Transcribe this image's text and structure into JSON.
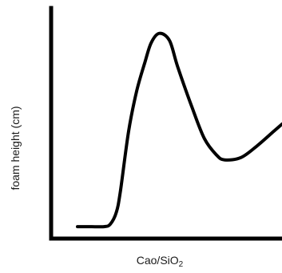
{
  "chart_data": {
    "type": "line",
    "title": "",
    "xlabel": "Cao/SiO",
    "xlabel_subscript": "2",
    "ylabel": "foam height (cm)",
    "x_ticks": [],
    "y_ticks": [],
    "grid": false,
    "legend": "none",
    "line_color": "#000000",
    "series": [
      {
        "name": "",
        "x": [
          0.0,
          0.07,
          0.13,
          0.16,
          0.19,
          0.21,
          0.25,
          0.29,
          0.33,
          0.36,
          0.4,
          0.45,
          0.49,
          0.56,
          0.62,
          0.68,
          0.72,
          0.8,
          0.88,
          0.96,
          1.0
        ],
        "y": [
          0.05,
          0.05,
          0.05,
          0.06,
          0.11,
          0.2,
          0.45,
          0.62,
          0.74,
          0.82,
          0.86,
          0.83,
          0.72,
          0.55,
          0.42,
          0.35,
          0.33,
          0.34,
          0.39,
          0.45,
          0.48
        ]
      }
    ]
  }
}
